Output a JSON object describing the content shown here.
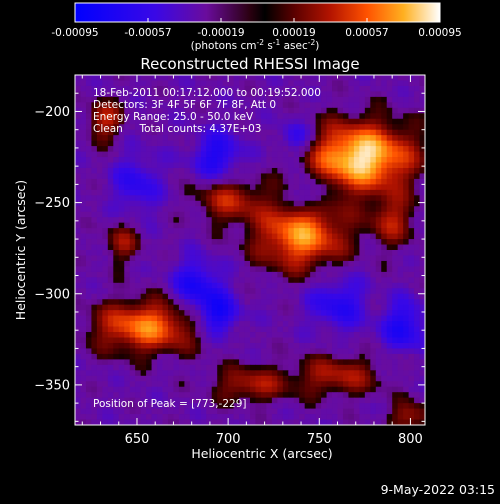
{
  "chart_data": {
    "type": "heatmap",
    "title": "Reconstructed RHESSI Image",
    "xlabel": "Heliocentric X (arcsec)",
    "ylabel": "Heliocentric Y (arcsec)",
    "xlim": [
      616,
      808
    ],
    "ylim": [
      -372,
      -180
    ],
    "x_ticks": [
      650,
      700,
      750,
      800
    ],
    "y_ticks": [
      -200,
      -250,
      -300,
      -350
    ],
    "colorbar": {
      "colormap": "IDL color table 3 (Rainbow + black)",
      "min": -0.00095,
      "max": 0.00095,
      "ticks": [
        "-0.00095",
        "-0.00057",
        "-0.00019",
        "0.00019",
        "0.00057",
        "0.00095"
      ],
      "unit_main": "(photons cm",
      "unit_exp1": "-2",
      "unit_mid": " s",
      "unit_exp2": "-1",
      "unit_end": " asec",
      "unit_exp3": "-2",
      "unit_close": ")"
    },
    "info_lines": [
      "18-Feb-2011 00:17:12.000 to 00:19:52.000",
      "Detectors: 3F 4F 5F 6F 7F 8F, Att 0",
      "Energy Range: 25.0 - 50.0 keV",
      "Clean     Total counts: 4.37E+03"
    ],
    "peak_label": "Position of Peak = [773,-229]",
    "peak": [
      773,
      -229
    ],
    "features": {
      "positive_sources": [
        {
          "x": 773,
          "y": -225,
          "sx": 20,
          "sy": 13,
          "amp": 1.0
        },
        {
          "x": 740,
          "y": -268,
          "sx": 17,
          "sy": 13,
          "amp": 0.78
        },
        {
          "x": 700,
          "y": -248,
          "sx": 13,
          "sy": 9,
          "amp": 0.45
        },
        {
          "x": 655,
          "y": -318,
          "sx": 20,
          "sy": 10,
          "amp": 0.72
        },
        {
          "x": 632,
          "y": -205,
          "sx": 7,
          "sy": 8,
          "amp": 0.45
        },
        {
          "x": 642,
          "y": -272,
          "sx": 7,
          "sy": 8,
          "amp": 0.35
        },
        {
          "x": 712,
          "y": -350,
          "sx": 14,
          "sy": 7,
          "amp": 0.42
        },
        {
          "x": 790,
          "y": -260,
          "sx": 9,
          "sy": 10,
          "amp": 0.4
        },
        {
          "x": 760,
          "y": -345,
          "sx": 17,
          "sy": 8,
          "amp": 0.42
        },
        {
          "x": 800,
          "y": -368,
          "sx": 8,
          "sy": 6,
          "amp": 0.4
        }
      ],
      "negative_sources": [
        {
          "x": 694,
          "y": -225,
          "sx": 10,
          "sy": 10,
          "amp": 0.45
        },
        {
          "x": 737,
          "y": -215,
          "sx": 7,
          "sy": 7,
          "amp": 0.4
        },
        {
          "x": 745,
          "y": -245,
          "sx": 7,
          "sy": 7,
          "amp": 0.4
        },
        {
          "x": 694,
          "y": -312,
          "sx": 9,
          "sy": 8,
          "amp": 0.5
        },
        {
          "x": 683,
          "y": -295,
          "sx": 10,
          "sy": 10,
          "amp": 0.45
        },
        {
          "x": 650,
          "y": -240,
          "sx": 9,
          "sy": 12,
          "amp": 0.35
        },
        {
          "x": 760,
          "y": -305,
          "sx": 11,
          "sy": 11,
          "amp": 0.4
        },
        {
          "x": 797,
          "y": -318,
          "sx": 9,
          "sy": 10,
          "amp": 0.45
        }
      ]
    }
  },
  "footer": {
    "timestamp": "9-May-2022 03:15"
  }
}
